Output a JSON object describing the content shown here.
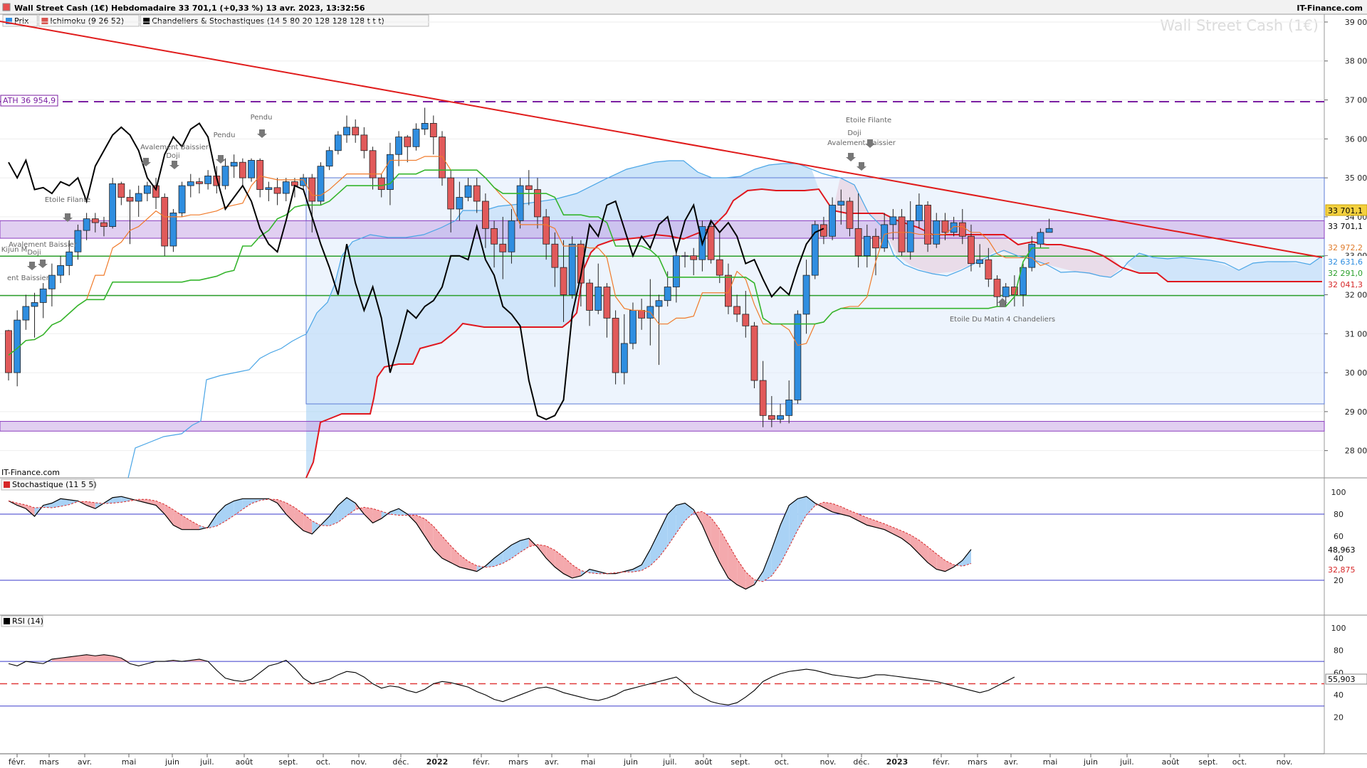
{
  "header": {
    "title": "Wall Street Cash (1€) Hebdomadaire 33 701,1 (+0,33 %) 13 avr. 2023, 13:32:56",
    "brand": "IT-Finance.com",
    "watermark": "Wall Street Cash (1€)",
    "legend": [
      {
        "label": "Prix",
        "color": "#2f8ee0"
      },
      {
        "label": "Ichimoku (9 26 52)",
        "color": "#d9534f"
      },
      {
        "label": "Chandeliers & Stochastiques (14 5 80 20 128 128 128 t t t)",
        "color": "#000000"
      }
    ]
  },
  "footer_brand": "IT-Finance.com",
  "x_axis": [
    "févr.",
    "mars",
    "avr.",
    "mai",
    "juin",
    "juil.",
    "août",
    "sept.",
    "oct.",
    "nov.",
    "déc.",
    "2022",
    "févr.",
    "mars",
    "avr.",
    "mai",
    "juin",
    "juil.",
    "août",
    "sept.",
    "oct.",
    "nov.",
    "déc.",
    "2023",
    "févr.",
    "mars",
    "avr.",
    "mai",
    "juin",
    "juil.",
    "août",
    "sept.",
    "oct.",
    "nov."
  ],
  "price_axis": [
    "39 000",
    "38 000",
    "37 000",
    "36 000",
    "35 000",
    "34 000",
    "33 000",
    "32 000",
    "31 000",
    "30 000",
    "29 000",
    "28 000"
  ],
  "price_tags": [
    {
      "text": "33 701,1",
      "bg": "#f4d03f",
      "fg": "#000"
    },
    {
      "text": "33 701,1",
      "bg": "#ffffff",
      "fg": "#000"
    },
    {
      "text": "32 972,2",
      "bg": "#ffffff",
      "fg": "#e07b2a"
    },
    {
      "text": "32 631,6",
      "bg": "#ffffff",
      "fg": "#2f8ee0"
    },
    {
      "text": "32 291,0",
      "bg": "#ffffff",
      "fg": "#2ca02c"
    },
    {
      "text": "32 041,3",
      "bg": "#ffffff",
      "fg": "#d62728"
    }
  ],
  "ath_label": "ATH 36 954,9",
  "annotations": [
    "Etoile Filante",
    "Avalement Baissier",
    "Doji",
    "Kijun M",
    "ent Baissier",
    "Avalement Baissier",
    "Doji",
    "Pendu",
    "Pendu",
    "Etoile Filante",
    "Doji",
    "Avalement Baissier",
    "Etoile Du Matin 4 Chandeliers"
  ],
  "stoch_panel": {
    "label": "Stochastique (11 5 5)",
    "axis": [
      "100",
      "80",
      "60",
      "40",
      "20"
    ],
    "tags": [
      "48,963",
      "32,875"
    ]
  },
  "rsi_panel": {
    "label": "RSI (14)",
    "axis": [
      "100",
      "80",
      "60",
      "40",
      "20"
    ],
    "tag": "55,903"
  },
  "chart_data": {
    "type": "candlestick",
    "title": "Wall Street Cash (1€) Hebdomadaire",
    "timeframe": "weekly",
    "last_price": 33701.1,
    "ylim": [
      27300,
      39200
    ],
    "horizontal_levels": {
      "ath": 36954.9,
      "resistance_band": [
        33450,
        33900
      ],
      "support_band": [
        28500,
        28750
      ],
      "green_1": 32991,
      "green_2": 31980
    },
    "candles_approx": [
      [
        31080,
        30000,
        31100,
        29800
      ],
      [
        30000,
        31350,
        31600,
        29650
      ],
      [
        31350,
        31700,
        32000,
        31100
      ],
      [
        31700,
        31800,
        32050,
        30900
      ],
      [
        31800,
        32150,
        32300,
        31400
      ],
      [
        32150,
        32500,
        32800,
        31700
      ],
      [
        32500,
        32750,
        33000,
        32300
      ],
      [
        32750,
        33100,
        33400,
        32500
      ],
      [
        33100,
        33650,
        33800,
        32900
      ],
      [
        33650,
        33950,
        34100,
        33400
      ],
      [
        33950,
        33850,
        34100,
        33600
      ],
      [
        33850,
        33750,
        34000,
        33500
      ],
      [
        33750,
        34850,
        35000,
        33700
      ],
      [
        34850,
        34500,
        34900,
        34300
      ],
      [
        34500,
        34400,
        34700,
        33300
      ],
      [
        34400,
        34600,
        34800,
        34000
      ],
      [
        34600,
        34800,
        34900,
        34400
      ],
      [
        34800,
        34500,
        35000,
        34200
      ],
      [
        34500,
        33250,
        34600,
        33000
      ],
      [
        33250,
        34100,
        34200,
        33100
      ],
      [
        34100,
        34800,
        34900,
        34000
      ],
      [
        34800,
        34900,
        35100,
        34500
      ],
      [
        34900,
        34850,
        35000,
        34600
      ],
      [
        34850,
        35050,
        35200,
        34700
      ],
      [
        35050,
        34800,
        35300,
        34600
      ],
      [
        34800,
        35300,
        35500,
        34700
      ],
      [
        35300,
        35400,
        35600,
        35000
      ],
      [
        35400,
        35000,
        35500,
        34800
      ],
      [
        35000,
        35450,
        35500,
        34900
      ],
      [
        35450,
        34700,
        35500,
        34500
      ],
      [
        34700,
        34750,
        34900,
        34400
      ],
      [
        34750,
        34600,
        35000,
        34300
      ],
      [
        34600,
        34900,
        35000,
        34400
      ],
      [
        34900,
        34800,
        35000,
        34500
      ],
      [
        34800,
        35000,
        35100,
        34700
      ],
      [
        35000,
        34400,
        35100,
        33600
      ],
      [
        34400,
        35300,
        35400,
        34300
      ],
      [
        35300,
        35700,
        35800,
        35200
      ],
      [
        35700,
        36100,
        36200,
        35600
      ],
      [
        36100,
        36300,
        36600,
        35900
      ],
      [
        36300,
        36100,
        36500,
        35900
      ],
      [
        36100,
        35700,
        36300,
        35500
      ],
      [
        35700,
        35000,
        35800,
        34700
      ],
      [
        35000,
        34700,
        35100,
        34500
      ],
      [
        34700,
        35600,
        35900,
        34300
      ],
      [
        35600,
        36050,
        36200,
        35300
      ],
      [
        36050,
        35800,
        36100,
        35400
      ],
      [
        35800,
        36250,
        36400,
        35700
      ],
      [
        36250,
        36400,
        36800,
        36100
      ],
      [
        36400,
        36050,
        36600,
        35600
      ],
      [
        36050,
        35000,
        36200,
        34800
      ],
      [
        35000,
        34200,
        35200,
        33600
      ],
      [
        34200,
        34500,
        34900,
        33900
      ],
      [
        34500,
        34800,
        35000,
        34400
      ],
      [
        34800,
        34400,
        35000,
        34100
      ],
      [
        34400,
        33700,
        34600,
        33200
      ],
      [
        33700,
        33300,
        33900,
        32700
      ],
      [
        33300,
        33100,
        34000,
        32400
      ],
      [
        33100,
        33900,
        34200,
        32800
      ],
      [
        33900,
        34800,
        35000,
        33700
      ],
      [
        34800,
        34700,
        35200,
        34300
      ],
      [
        34700,
        34000,
        35000,
        33700
      ],
      [
        34000,
        33300,
        34200,
        32900
      ],
      [
        33300,
        32700,
        33600,
        32200
      ],
      [
        32700,
        32000,
        33400,
        31300
      ],
      [
        32000,
        33300,
        33500,
        31900
      ],
      [
        33300,
        32300,
        33400,
        31700
      ],
      [
        32300,
        31600,
        32400,
        31200
      ],
      [
        31600,
        32200,
        32800,
        31500
      ],
      [
        32200,
        31400,
        32300,
        30900
      ],
      [
        31400,
        30000,
        31600,
        29700
      ],
      [
        30000,
        30750,
        31500,
        29700
      ],
      [
        30750,
        31600,
        31800,
        30600
      ],
      [
        31600,
        31400,
        31900,
        31100
      ],
      [
        31400,
        31700,
        32400,
        30700
      ],
      [
        31700,
        31850,
        32000,
        30200
      ],
      [
        31850,
        32200,
        32600,
        31700
      ],
      [
        32200,
        33000,
        33100,
        31800
      ],
      [
        33000,
        33000,
        33100,
        32700
      ],
      [
        33000,
        32900,
        33200,
        32500
      ],
      [
        32900,
        33750,
        33900,
        32600
      ],
      [
        33750,
        32900,
        33900,
        32800
      ],
      [
        32900,
        32500,
        33600,
        32300
      ],
      [
        32500,
        31700,
        32800,
        31500
      ],
      [
        31700,
        31500,
        32000,
        31300
      ],
      [
        31500,
        31200,
        32100,
        30900
      ],
      [
        31200,
        29800,
        31300,
        29600
      ],
      [
        29800,
        28900,
        30300,
        28600
      ],
      [
        28900,
        28800,
        29400,
        28600
      ],
      [
        28800,
        28900,
        29200,
        28700
      ],
      [
        28900,
        29300,
        29800,
        28700
      ],
      [
        29300,
        31500,
        31600,
        29200
      ],
      [
        31500,
        32500,
        32900,
        31000
      ],
      [
        32500,
        33800,
        33900,
        32400
      ],
      [
        33800,
        33500,
        34000,
        33300
      ],
      [
        33500,
        34300,
        34500,
        33400
      ],
      [
        34300,
        34400,
        34700,
        33800
      ],
      [
        34400,
        33700,
        34500,
        33500
      ],
      [
        33700,
        33000,
        34600,
        32700
      ],
      [
        33000,
        33500,
        33800,
        32700
      ],
      [
        33500,
        33200,
        33700,
        32500
      ],
      [
        33200,
        33800,
        34100,
        33100
      ],
      [
        33800,
        34000,
        34200,
        33400
      ],
      [
        34000,
        33100,
        34200,
        33000
      ],
      [
        33100,
        33900,
        34400,
        32900
      ],
      [
        33900,
        34300,
        34600,
        33700
      ],
      [
        34300,
        33300,
        34400,
        33100
      ],
      [
        33300,
        33900,
        34100,
        33200
      ],
      [
        33900,
        33600,
        34100,
        33400
      ],
      [
        33600,
        33850,
        34000,
        33500
      ],
      [
        33850,
        33500,
        34200,
        33300
      ],
      [
        33500,
        32800,
        33800,
        32600
      ],
      [
        32800,
        32900,
        33300,
        32700
      ],
      [
        32900,
        32400,
        33200,
        32200
      ],
      [
        32400,
        31950,
        32500,
        31700
      ],
      [
        31950,
        32200,
        32300,
        31700
      ],
      [
        32200,
        32000,
        32500,
        31700
      ],
      [
        32000,
        32700,
        32800,
        31700
      ],
      [
        32700,
        33300,
        33500,
        32600
      ],
      [
        33300,
        33600,
        33700,
        33200
      ],
      [
        33600,
        33701.1,
        33950,
        33600
      ]
    ],
    "ichimoku": {
      "tenkan": "orange line",
      "kijun": "green line",
      "chikou": "black line",
      "senkou_a": "blue line",
      "senkou_b": "red line"
    },
    "stochastic": {
      "k_last": 48.963,
      "d_last": 32.875,
      "levels": [
        80,
        20
      ]
    },
    "rsi": {
      "period": 14,
      "last": 55.903,
      "levels": [
        70,
        30,
        50
      ]
    }
  }
}
